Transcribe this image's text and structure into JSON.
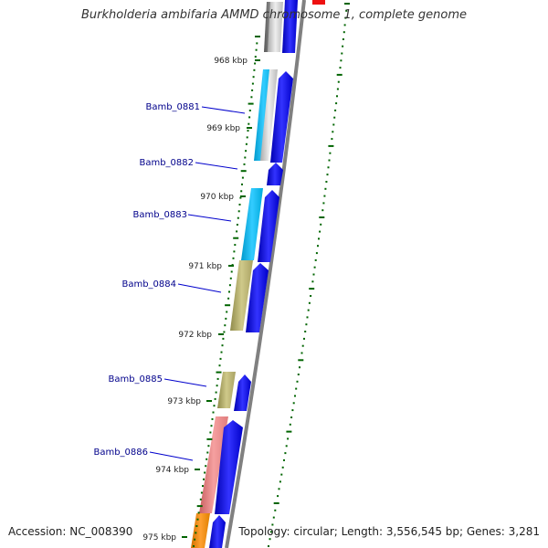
{
  "title": "Burkholderia ambifaria AMMD chromosome 1, complete genome",
  "accession_text": "Accession: NC_008390",
  "topology_text": "Topology: circular; Length: 3,556,545 bp; Genes: 3,281",
  "kbp_labels": [
    "968 kbp",
    "969 kbp",
    "970 kbp",
    "971 kbp",
    "972 kbp",
    "973 kbp",
    "974 kbp",
    "975 kbp"
  ],
  "genes": [
    {
      "name": "Bamb_0881",
      "color": "#00bfff"
    },
    {
      "name": "Bamb_0882",
      "color": "#0000ff"
    },
    {
      "name": "Bamb_0883",
      "color": "#00bfff"
    },
    {
      "name": "Bamb_0884",
      "color": "#bdb76b"
    },
    {
      "name": "Bamb_0885",
      "color": "#bdb76b"
    },
    {
      "name": "Bamb_0886",
      "color": "#f08080"
    }
  ],
  "colors": {
    "cds_arrow": "#0000ff",
    "ruler_tick": "#006400",
    "label_text": "#00008b",
    "backbone": "#808080"
  }
}
